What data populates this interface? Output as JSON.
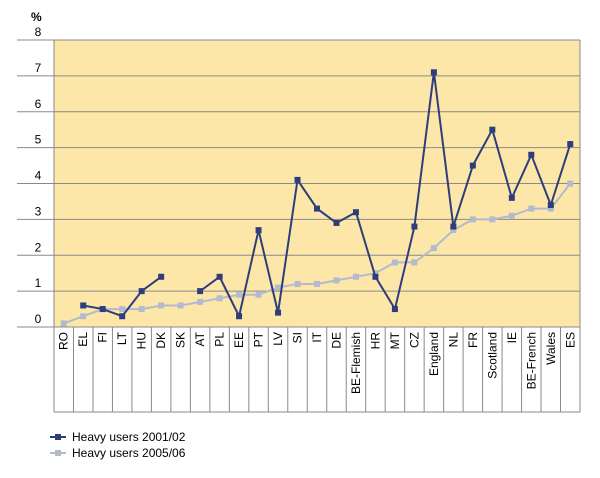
{
  "chart_data": {
    "type": "line",
    "unit_label": "%",
    "ylim": [
      0,
      8
    ],
    "y_ticks": [
      0,
      1,
      2,
      3,
      4,
      5,
      6,
      7,
      8
    ],
    "grid": true,
    "legend_position": "bottom-left",
    "categories": [
      "RO",
      "EL",
      "FI",
      "LT",
      "HU",
      "DK",
      "SK",
      "AT",
      "PL",
      "EE",
      "PT",
      "LV",
      "SI",
      "IT",
      "DE",
      "BE-Flemish",
      "HR",
      "MT",
      "CZ",
      "England",
      "NL",
      "FR",
      "Scotland",
      "IE",
      "BE-French",
      "Wales",
      "ES"
    ],
    "series": [
      {
        "name": "Heavy users 2001/02",
        "color": "#2e3d7c",
        "values": [
          null,
          0.6,
          0.5,
          0.3,
          1.0,
          1.4,
          null,
          1.0,
          1.4,
          0.3,
          2.7,
          0.4,
          4.1,
          3.3,
          2.9,
          3.2,
          1.4,
          0.5,
          2.8,
          7.1,
          2.8,
          4.5,
          5.5,
          3.6,
          4.8,
          3.4,
          5.1
        ]
      },
      {
        "name": "Heavy users 2005/06",
        "color": "#b4bacd",
        "values": [
          0.1,
          0.3,
          0.5,
          0.5,
          0.5,
          0.6,
          0.6,
          0.7,
          0.8,
          0.9,
          0.9,
          1.1,
          1.2,
          1.2,
          1.3,
          1.4,
          1.5,
          1.8,
          1.8,
          2.2,
          2.7,
          3.0,
          3.0,
          3.1,
          3.3,
          3.3,
          4.0
        ]
      }
    ]
  }
}
